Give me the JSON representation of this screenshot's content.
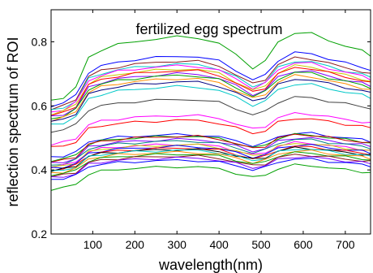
{
  "chart_data": {
    "type": "line",
    "title": "fertilized egg spectrum",
    "xlabel": "wavelength(nm)",
    "ylabel": "reflection spectrum of ROI",
    "xlim": [
      1,
      760
    ],
    "ylim": [
      0.2,
      0.9
    ],
    "xticks": [
      100,
      200,
      300,
      400,
      500,
      600,
      700
    ],
    "yticks": [
      0.2,
      0.4,
      0.6,
      0.8
    ],
    "xtick_labels": [
      "100",
      "200",
      "300",
      "400",
      "500",
      "600",
      "700"
    ],
    "ytick_labels": [
      "0.2",
      "0.4",
      "0.6",
      "0.8"
    ],
    "grid": false,
    "legend": "none",
    "x": [
      1,
      30,
      60,
      90,
      120,
      160,
      200,
      250,
      300,
      350,
      400,
      440,
      480,
      510,
      540,
      580,
      620,
      660,
      700,
      740,
      760
    ],
    "series_shape": [
      0,
      0.06,
      0.21,
      0.68,
      0.8,
      0.88,
      0.93,
      0.97,
      1.0,
      0.99,
      0.9,
      0.72,
      0.52,
      0.62,
      0.92,
      1.07,
      1.05,
      0.95,
      0.86,
      0.78,
      0.72
    ],
    "series": [
      {
        "color": "#00a000",
        "base": 0.615,
        "amp": 0.2
      },
      {
        "color": "#0000ff",
        "base": 0.6,
        "amp": 0.155
      },
      {
        "color": "#8b1a1a",
        "base": 0.59,
        "amp": 0.15
      },
      {
        "color": "#00c8c8",
        "base": 0.585,
        "amp": 0.145
      },
      {
        "color": "#ff00ff",
        "base": 0.58,
        "amp": 0.145
      },
      {
        "color": "#c8c800",
        "base": 0.575,
        "amp": 0.14
      },
      {
        "color": "#ff0000",
        "base": 0.57,
        "amp": 0.14
      },
      {
        "color": "#8000ff",
        "base": 0.565,
        "amp": 0.135
      },
      {
        "color": "#00a000",
        "base": 0.56,
        "amp": 0.135
      },
      {
        "color": "#ff8c00",
        "base": 0.555,
        "amp": 0.13
      },
      {
        "color": "#000080",
        "base": 0.55,
        "amp": 0.125
      },
      {
        "color": "#00c8c8",
        "base": 0.54,
        "amp": 0.12
      },
      {
        "color": "#404040",
        "base": 0.52,
        "amp": 0.1
      },
      {
        "color": "#ff00ff",
        "base": 0.48,
        "amp": 0.09
      },
      {
        "color": "#ff0000",
        "base": 0.47,
        "amp": 0.085
      },
      {
        "color": "#0000ff",
        "base": 0.44,
        "amp": 0.07
      },
      {
        "color": "#00a000",
        "base": 0.43,
        "amp": 0.075
      },
      {
        "color": "#c80000",
        "base": 0.425,
        "amp": 0.08
      },
      {
        "color": "#8000ff",
        "base": 0.42,
        "amp": 0.075
      },
      {
        "color": "#008080",
        "base": 0.415,
        "amp": 0.075
      },
      {
        "color": "#ff00ff",
        "base": 0.41,
        "amp": 0.07
      },
      {
        "color": "#c8c800",
        "base": 0.408,
        "amp": 0.07
      },
      {
        "color": "#0000ff",
        "base": 0.405,
        "amp": 0.068
      },
      {
        "color": "#ff0000",
        "base": 0.4,
        "amp": 0.068
      },
      {
        "color": "#000000",
        "base": 0.398,
        "amp": 0.066
      },
      {
        "color": "#00c8c8",
        "base": 0.395,
        "amp": 0.066
      },
      {
        "color": "#ff8c00",
        "base": 0.39,
        "amp": 0.065
      },
      {
        "color": "#00a000",
        "base": 0.385,
        "amp": 0.064
      },
      {
        "color": "#8b1a1a",
        "base": 0.38,
        "amp": 0.063
      },
      {
        "color": "#8000ff",
        "base": 0.375,
        "amp": 0.062
      },
      {
        "color": "#0000ff",
        "base": 0.37,
        "amp": 0.06
      },
      {
        "color": "#00a000",
        "base": 0.34,
        "amp": 0.07
      }
    ]
  }
}
